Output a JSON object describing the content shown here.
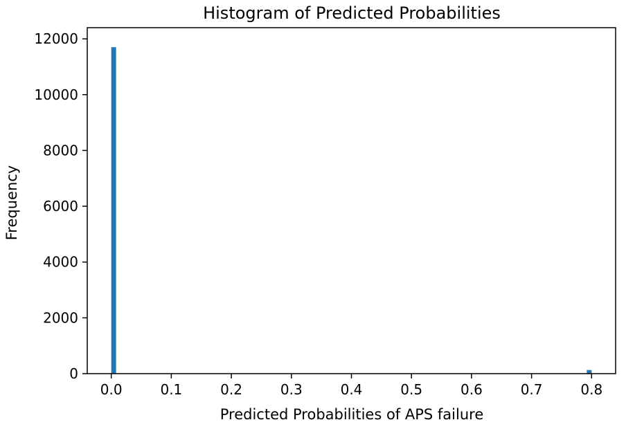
{
  "chart_data": {
    "type": "bar",
    "title": "Histogram of Predicted Probabilities",
    "xlabel": "Predicted Probabilities of APS failure",
    "ylabel": "Frequency",
    "xlim": [
      -0.04,
      0.84
    ],
    "ylim": [
      0,
      12400
    ],
    "xticks": [
      0.0,
      0.1,
      0.2,
      0.3,
      0.4,
      0.5,
      0.6,
      0.7,
      0.8
    ],
    "xtick_labels": [
      "0.0",
      "0.1",
      "0.2",
      "0.3",
      "0.4",
      "0.5",
      "0.6",
      "0.7",
      "0.8"
    ],
    "yticks": [
      0,
      2000,
      4000,
      6000,
      8000,
      10000,
      12000
    ],
    "ytick_labels": [
      "0",
      "2000",
      "4000",
      "6000",
      "8000",
      "10000",
      "12000"
    ],
    "bins": [
      {
        "x0": 0.0,
        "x1": 0.008,
        "value": 11700
      },
      {
        "x0": 0.792,
        "x1": 0.8,
        "value": 130
      }
    ],
    "bar_color": "#1f77b4",
    "grid": false,
    "legend": "none"
  }
}
